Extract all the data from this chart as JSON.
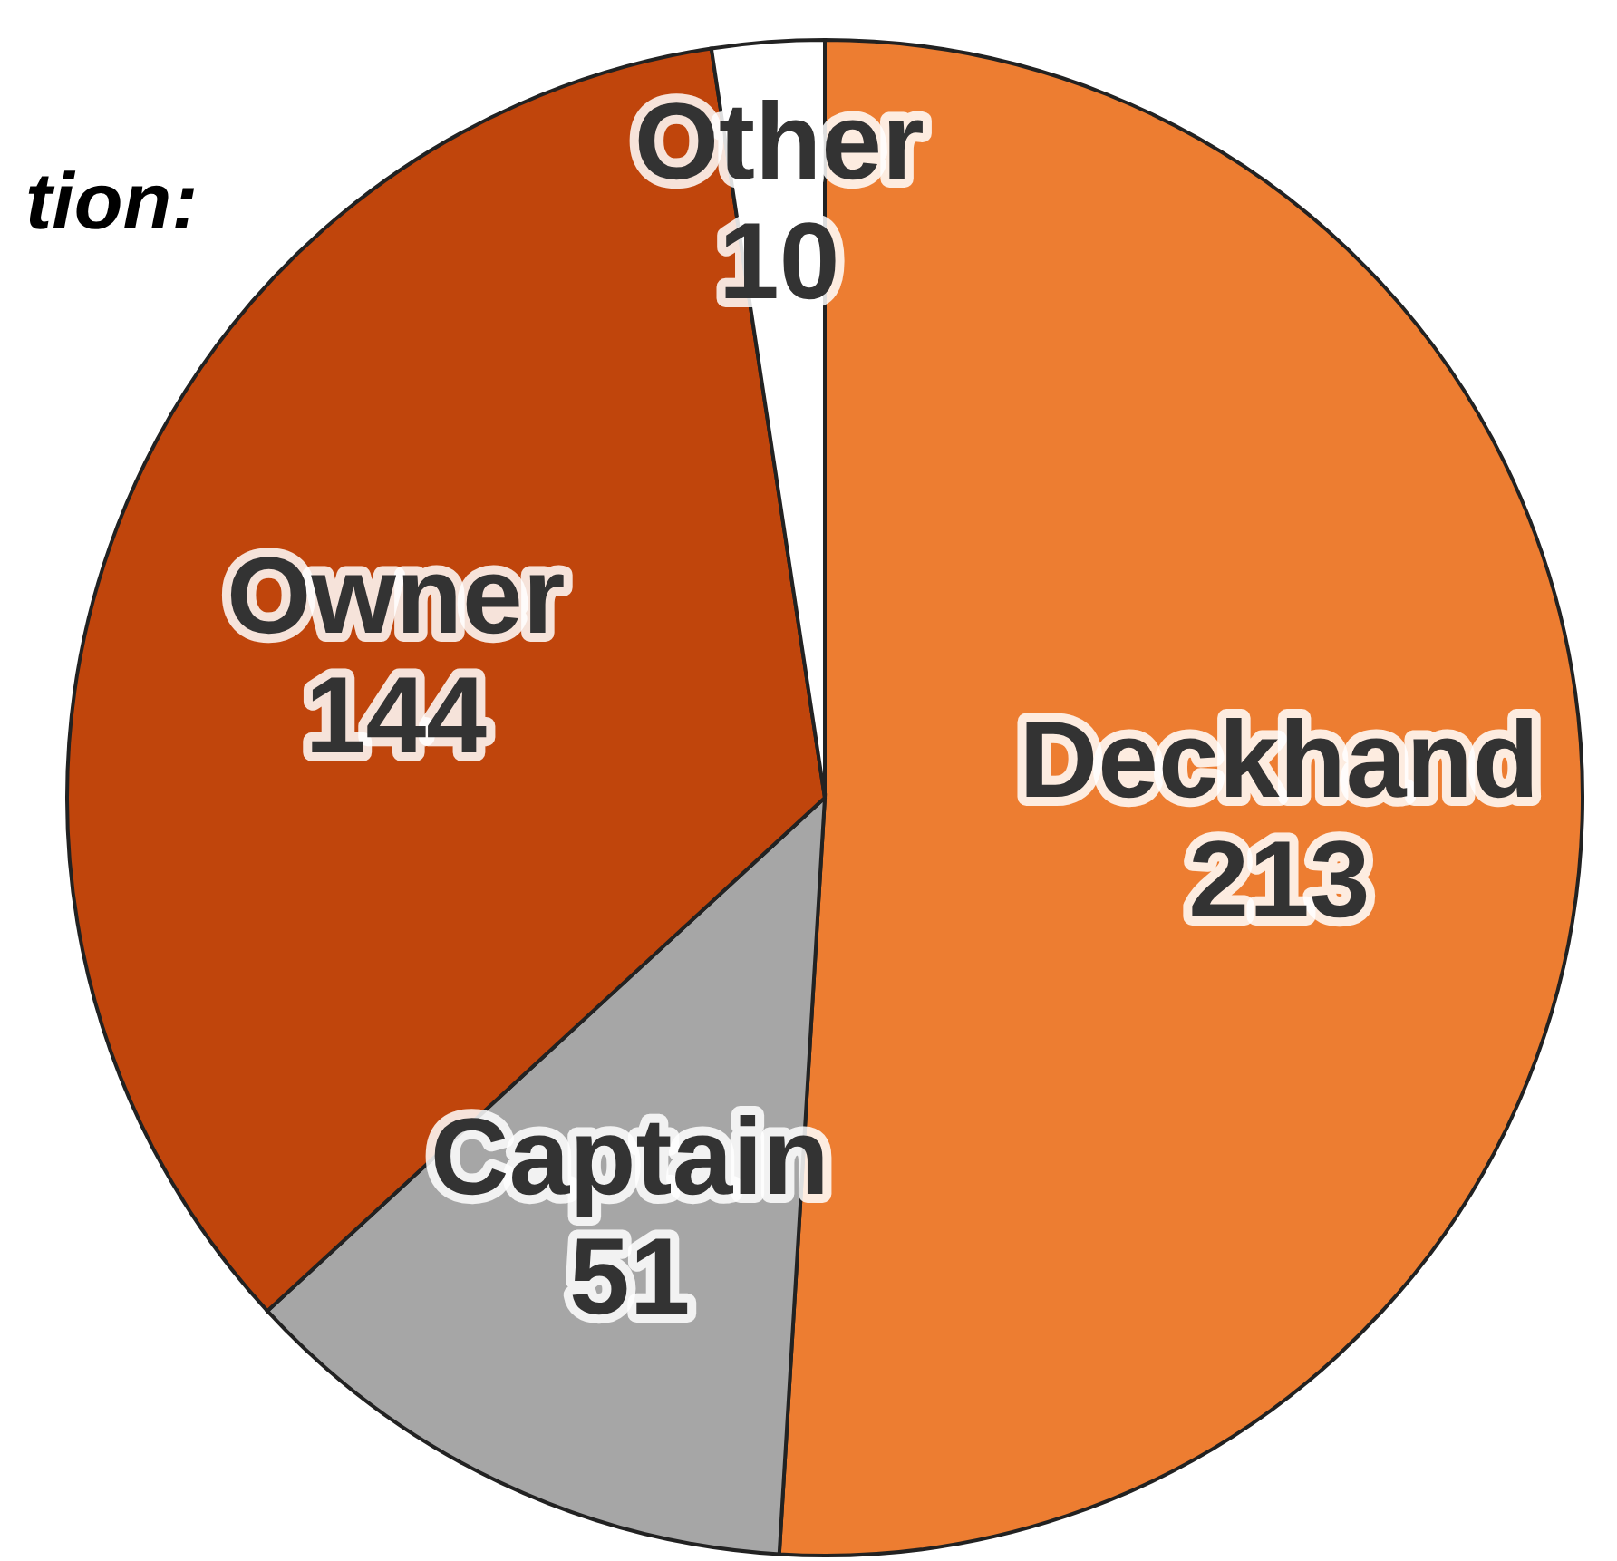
{
  "chart_data": {
    "type": "pie",
    "title": "tion:",
    "categories": [
      "Deckhand",
      "Captain",
      "Owner",
      "Other"
    ],
    "values": [
      213,
      51,
      144,
      10
    ],
    "colors": [
      "#ed7d31",
      "#a6a6a6",
      "#c0450c",
      "#ffffff"
    ],
    "data_labels": true
  }
}
